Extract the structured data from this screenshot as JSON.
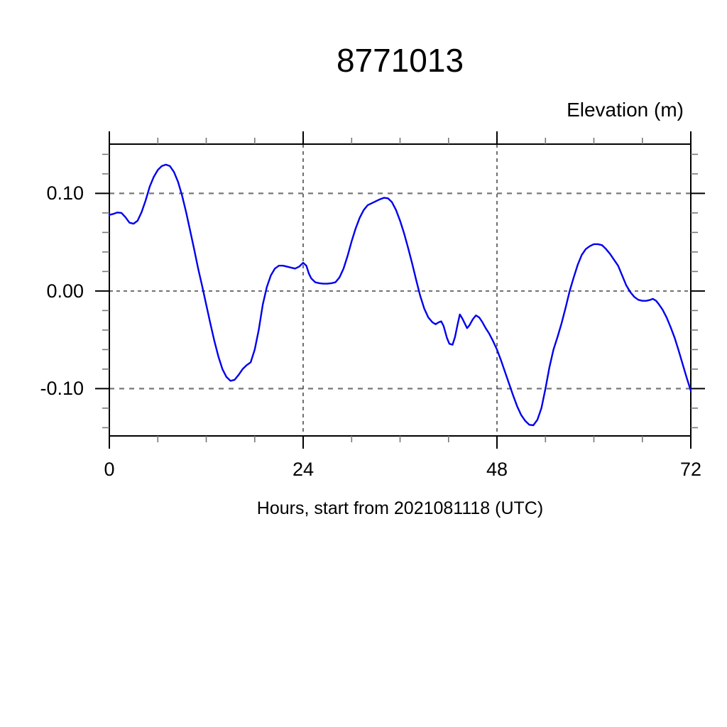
{
  "chart": {
    "title": "8771013",
    "ylabel": "Elevation (m)",
    "xlabel": "Hours, start from 2021081118 (UTC)"
  },
  "chart_data": {
    "type": "line",
    "title": "8771013",
    "xlabel": "Hours, start from 2021081118 (UTC)",
    "ylabel": "Elevation (m)",
    "xlim": [
      0,
      72
    ],
    "ylim": [
      -0.1484,
      0.1505
    ],
    "x_major_ticks": [
      0,
      24,
      48,
      72
    ],
    "x_tick_labels": [
      "0",
      "24",
      "48",
      "72"
    ],
    "x_minor_ticks": [
      6,
      12,
      18,
      30,
      36,
      42,
      54,
      60,
      66
    ],
    "y_major_ticks": [
      0.1,
      0.0,
      -0.1
    ],
    "y_tick_labels": [
      "0.10",
      "0.00",
      "-0.10"
    ],
    "y_minor_ticks": [
      0.14,
      0.12,
      0.08,
      0.06,
      0.04,
      0.02,
      -0.02,
      -0.04,
      -0.06,
      -0.08,
      -0.12,
      -0.14
    ],
    "grid": {
      "style": "dashed",
      "x_lines": [
        24,
        48
      ],
      "y_lines": [
        0.1,
        0.0,
        -0.1
      ]
    },
    "legend": "none",
    "line_color": "#0000ee",
    "series": [
      {
        "name": "elevation",
        "x": [
          0,
          0.5,
          1,
          1.5,
          2,
          2.5,
          3,
          3.5,
          4,
          4.5,
          5,
          5.5,
          6,
          6.5,
          7,
          7.5,
          8,
          8.5,
          9,
          9.5,
          10,
          10.5,
          11,
          11.5,
          12,
          12.5,
          13,
          13.5,
          14,
          14.5,
          15,
          15.5,
          16,
          16.5,
          17,
          17.5,
          18,
          18.5,
          19,
          19.5,
          20,
          20.5,
          21,
          21.5,
          22,
          22.5,
          23,
          23.5,
          24,
          24.4,
          24.7,
          25,
          25.5,
          26,
          26.5,
          27,
          27.5,
          28,
          28.5,
          29,
          29.5,
          30,
          30.5,
          31,
          31.5,
          32,
          32.5,
          33,
          33.5,
          34,
          34.5,
          35,
          35.5,
          36,
          36.5,
          37,
          37.5,
          38,
          38.5,
          39,
          39.5,
          40,
          40.4,
          40.8,
          41.1,
          41.4,
          41.8,
          42.1,
          42.5,
          42.8,
          43.1,
          43.4,
          43.7,
          44,
          44.3,
          44.6,
          45,
          45.4,
          45.8,
          46.2,
          46.6,
          47,
          47.5,
          48,
          48.5,
          49,
          49.5,
          50,
          50.5,
          51,
          51.5,
          52,
          52.5,
          53,
          53.5,
          54,
          54.5,
          55,
          55.5,
          56,
          56.5,
          57,
          57.5,
          58,
          58.5,
          59,
          59.5,
          60,
          60.5,
          61,
          61.5,
          62,
          62.5,
          63,
          63.5,
          64,
          64.5,
          65,
          65.5,
          66,
          66.5,
          67,
          67.3,
          67.7,
          68,
          68.5,
          69,
          69.5,
          70,
          70.5,
          71,
          71.5,
          72
        ],
        "y": [
          0.078,
          0.079,
          0.0805,
          0.08,
          0.0755,
          0.07,
          0.069,
          0.072,
          0.081,
          0.093,
          0.107,
          0.117,
          0.124,
          0.128,
          0.1295,
          0.128,
          0.122,
          0.112,
          0.098,
          0.081,
          0.062,
          0.043,
          0.023,
          0.005,
          -0.014,
          -0.033,
          -0.051,
          -0.067,
          -0.08,
          -0.088,
          -0.092,
          -0.091,
          -0.086,
          -0.08,
          -0.076,
          -0.073,
          -0.06,
          -0.04,
          -0.014,
          0.004,
          0.016,
          0.023,
          0.026,
          0.026,
          0.025,
          0.024,
          0.023,
          0.025,
          0.029,
          0.026,
          0.018,
          0.013,
          0.009,
          0.008,
          0.0075,
          0.0075,
          0.008,
          0.009,
          0.014,
          0.023,
          0.036,
          0.051,
          0.064,
          0.075,
          0.083,
          0.088,
          0.09,
          0.092,
          0.094,
          0.0955,
          0.095,
          0.091,
          0.083,
          0.072,
          0.059,
          0.044,
          0.028,
          0.011,
          -0.005,
          -0.018,
          -0.027,
          -0.032,
          -0.034,
          -0.032,
          -0.031,
          -0.036,
          -0.048,
          -0.054,
          -0.055,
          -0.047,
          -0.035,
          -0.024,
          -0.028,
          -0.033,
          -0.038,
          -0.035,
          -0.029,
          -0.025,
          -0.027,
          -0.032,
          -0.038,
          -0.043,
          -0.051,
          -0.06,
          -0.071,
          -0.083,
          -0.095,
          -0.107,
          -0.118,
          -0.127,
          -0.133,
          -0.137,
          -0.1375,
          -0.132,
          -0.12,
          -0.1,
          -0.078,
          -0.06,
          -0.047,
          -0.033,
          -0.017,
          0.0,
          0.014,
          0.027,
          0.037,
          0.043,
          0.046,
          0.048,
          0.048,
          0.047,
          0.043,
          0.038,
          0.032,
          0.026,
          0.016,
          0.006,
          -0.001,
          -0.006,
          -0.009,
          -0.01,
          -0.01,
          -0.009,
          -0.008,
          -0.01,
          -0.013,
          -0.019,
          -0.027,
          -0.037,
          -0.048,
          -0.061,
          -0.075,
          -0.089,
          -0.102
        ]
      }
    ]
  }
}
